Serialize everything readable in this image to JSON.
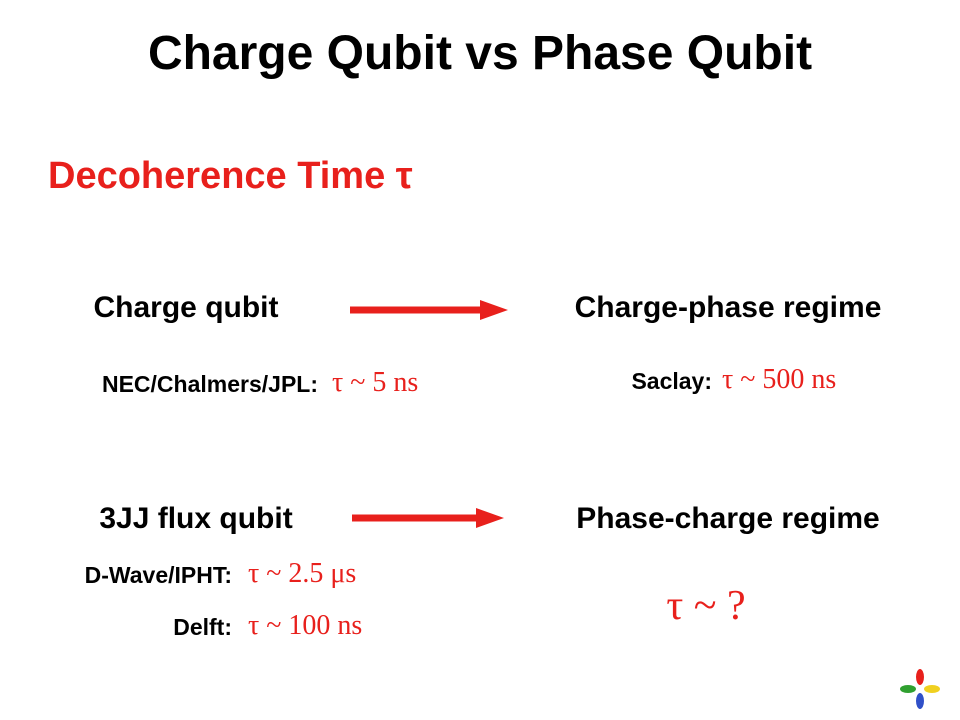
{
  "title": "Charge Qubit vs Phase Qubit",
  "subtitle": "Decoherence Time τ",
  "rows": [
    {
      "left": "Charge qubit",
      "right": "Charge-phase regime",
      "left_results": [
        {
          "label": "NEC/Chalmers/JPL:",
          "value": "τ ~ 5 ns"
        }
      ],
      "right_results": [
        {
          "label": "Saclay:",
          "value": "τ ~ 500 ns"
        }
      ]
    },
    {
      "left": "3JJ flux qubit",
      "right": "Phase-charge regime",
      "left_results": [
        {
          "label": "D-Wave/IPHT:",
          "value": "τ ~ 2.5 μs"
        },
        {
          "label": "Delft:",
          "value": "τ ~ 100 ns"
        }
      ],
      "right_results": [
        {
          "value": "τ ~ ?"
        }
      ]
    }
  ]
}
